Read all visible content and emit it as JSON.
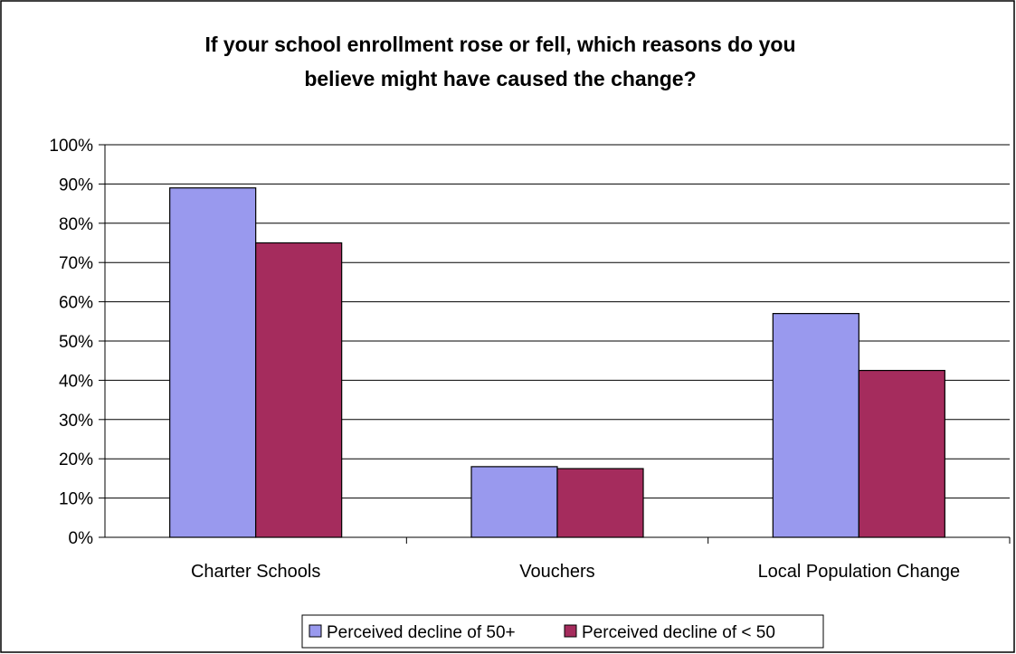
{
  "chart_data": {
    "type": "bar",
    "title": "If your school enrollment rose or fell, which reasons do you believe might have caused the change?",
    "title_lines": [
      "If your school enrollment rose or fell, which reasons do you",
      "believe might have caused the change?"
    ],
    "xlabel": "",
    "ylabel": "",
    "categories": [
      "Charter Schools",
      "Vouchers",
      "Local Population Change"
    ],
    "series": [
      {
        "name": "Perceived decline of 50+",
        "values": [
          0.89,
          0.18,
          0.57
        ],
        "color": "#9999ee"
      },
      {
        "name": "Perceived decline of < 50",
        "values": [
          0.75,
          0.175,
          0.425
        ],
        "color": "#a52c5d"
      }
    ],
    "ylim": [
      0,
      1
    ],
    "yticks": [
      {
        "value": 0,
        "label": "0%"
      },
      {
        "value": 0.1,
        "label": "10%"
      },
      {
        "value": 0.2,
        "label": "20%"
      },
      {
        "value": 0.3,
        "label": "30%"
      },
      {
        "value": 0.4,
        "label": "40%"
      },
      {
        "value": 0.5,
        "label": "50%"
      },
      {
        "value": 0.6,
        "label": "60%"
      },
      {
        "value": 0.7,
        "label": "70%"
      },
      {
        "value": 0.8,
        "label": "80%"
      },
      {
        "value": 0.9,
        "label": "90%"
      },
      {
        "value": 1,
        "label": "100%"
      }
    ],
    "grid": true,
    "legend_position": "bottom"
  }
}
